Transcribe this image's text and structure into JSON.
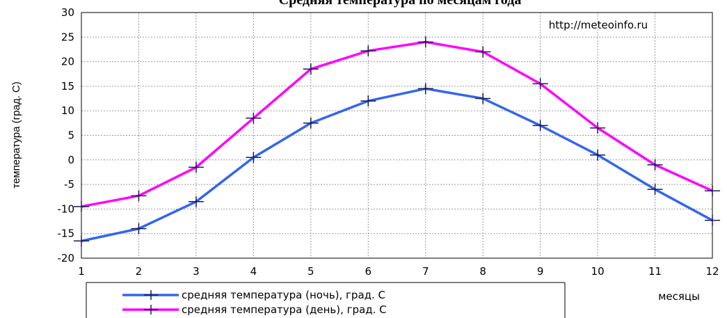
{
  "chart_data": {
    "type": "line",
    "title": "Средняя температура по месяцам года",
    "ylabel": "температура (град. С)",
    "xlabel": "месяцы",
    "source": "http://meteoinfo.ru",
    "x": [
      1,
      2,
      3,
      4,
      5,
      6,
      7,
      8,
      9,
      10,
      11,
      12
    ],
    "ylim": [
      -20,
      30
    ],
    "yticks": [
      -20,
      -15,
      -10,
      -5,
      0,
      5,
      10,
      15,
      20,
      25,
      30
    ],
    "grid": true,
    "legend_position": "bottom-left",
    "series": [
      {
        "name": "средняя температура (ночь), град. С",
        "color": "#3366ee",
        "values": [
          -16.5,
          -14,
          -8.5,
          0.5,
          7.5,
          12,
          14.5,
          12.5,
          7,
          1,
          -6,
          -12.3
        ]
      },
      {
        "name": "средняя температура (день), град. С",
        "color": "#ff00ff",
        "values": [
          -9.5,
          -7.3,
          -1.5,
          8.5,
          18.5,
          22.2,
          24,
          22,
          15.5,
          6.5,
          -1,
          -6.3
        ]
      }
    ]
  }
}
